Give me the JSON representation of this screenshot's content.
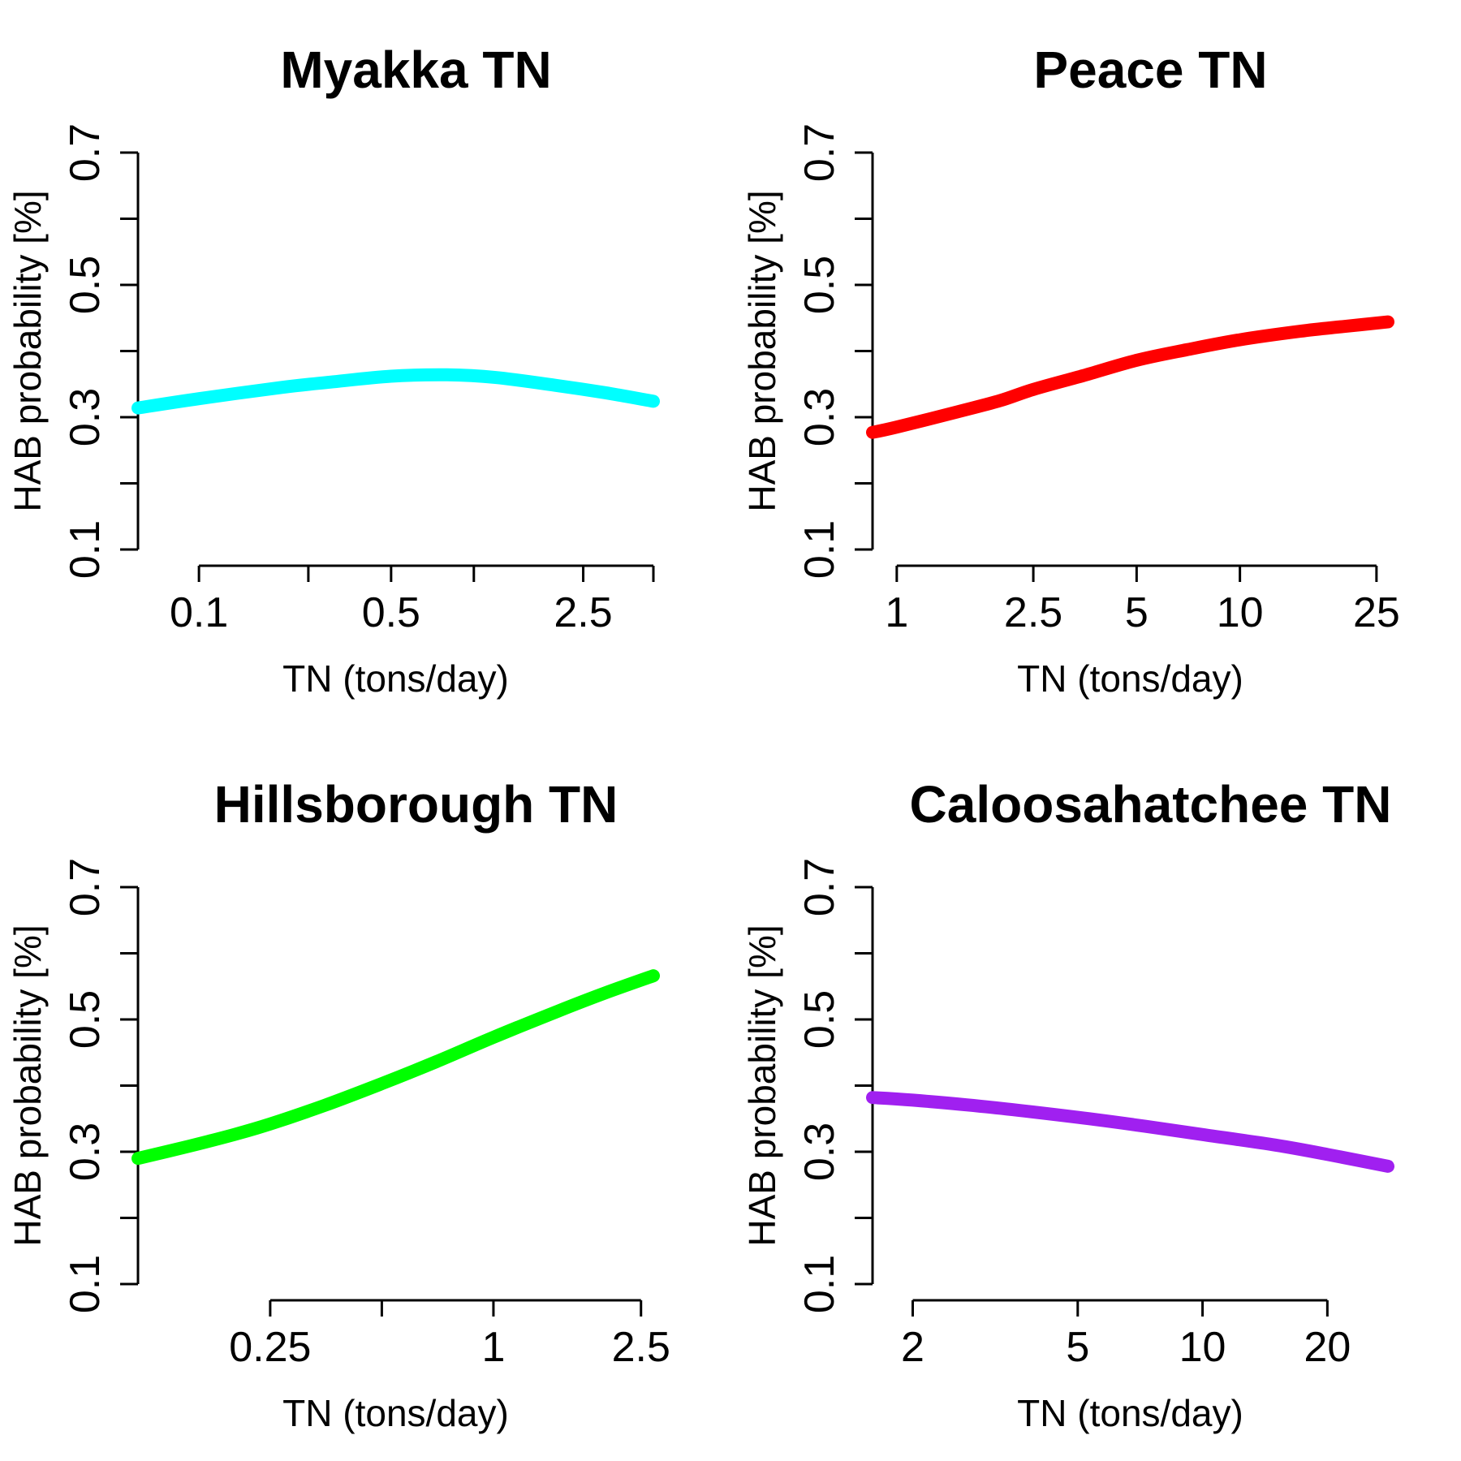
{
  "chart_data": [
    {
      "type": "line",
      "title": "Myakka TN",
      "xlabel": "TN (tons/day)",
      "ylabel": "HAB probability [%]",
      "xscale": "log",
      "xlim": [
        0.06,
        4.5
      ],
      "ylim": [
        0.1,
        0.7
      ],
      "yticks": [
        0.1,
        0.2,
        0.3,
        0.4,
        0.5,
        0.6,
        0.7
      ],
      "ytick_labels": [
        "0.1",
        "",
        "0.3",
        "",
        "0.5",
        "",
        "0.7"
      ],
      "xticks": [
        0.1,
        0.25,
        0.5,
        1,
        2.5,
        4.5
      ],
      "xtick_labels": [
        "0.1",
        "",
        "0.5",
        "",
        "2.5",
        ""
      ],
      "color": "#00ffff",
      "grid": false,
      "series": [
        {
          "x": [
            0.06,
            0.1,
            0.2,
            0.3,
            0.5,
            0.8,
            1.2,
            2.0,
            3.0,
            4.5
          ],
          "y": [
            0.314,
            0.328,
            0.345,
            0.353,
            0.362,
            0.364,
            0.36,
            0.348,
            0.337,
            0.324
          ]
        }
      ]
    },
    {
      "type": "line",
      "title": "Peace TN",
      "xlabel": "TN (tons/day)",
      "ylabel": "HAB probability [%]",
      "xscale": "log",
      "xlim": [
        0.85,
        27
      ],
      "ylim": [
        0.1,
        0.7
      ],
      "yticks": [
        0.1,
        0.2,
        0.3,
        0.4,
        0.5,
        0.6,
        0.7
      ],
      "ytick_labels": [
        "0.1",
        "",
        "0.3",
        "",
        "0.5",
        "",
        "0.7"
      ],
      "xticks": [
        1,
        2.5,
        5,
        10,
        25
      ],
      "xtick_labels": [
        "1",
        "2.5",
        "5",
        "10",
        "25"
      ],
      "color": "#ff0000",
      "grid": false,
      "series": [
        {
          "x": [
            0.85,
            1,
            1.5,
            2,
            2.5,
            3.5,
            5,
            7,
            10,
            15,
            20,
            27
          ],
          "y": [
            0.277,
            0.285,
            0.308,
            0.325,
            0.342,
            0.363,
            0.386,
            0.402,
            0.417,
            0.43,
            0.437,
            0.444
          ]
        }
      ]
    },
    {
      "type": "line",
      "title": "Hillsborough TN",
      "xlabel": "TN (tons/day)",
      "ylabel": "HAB probability [%]",
      "xscale": "log",
      "xlim": [
        0.11,
        2.7
      ],
      "ylim": [
        0.1,
        0.7
      ],
      "yticks": [
        0.1,
        0.2,
        0.3,
        0.4,
        0.5,
        0.6,
        0.7
      ],
      "ytick_labels": [
        "0.1",
        "",
        "0.3",
        "",
        "0.5",
        "",
        "0.7"
      ],
      "xticks": [
        0.25,
        0.5,
        1,
        2.5
      ],
      "xtick_labels": [
        "0.25",
        "",
        "1",
        "2.5"
      ],
      "color": "#00ff00",
      "grid": false,
      "series": [
        {
          "x": [
            0.11,
            0.15,
            0.2,
            0.25,
            0.35,
            0.5,
            0.7,
            1.0,
            1.5,
            2.0,
            2.7
          ],
          "y": [
            0.29,
            0.308,
            0.326,
            0.342,
            0.37,
            0.403,
            0.436,
            0.473,
            0.513,
            0.54,
            0.566
          ]
        }
      ]
    },
    {
      "type": "line",
      "title": "Caloosahatchee TN",
      "xlabel": "TN (tons/day)",
      "ylabel": "HAB probability [%]",
      "xscale": "log",
      "xlim": [
        1.6,
        28
      ],
      "ylim": [
        0.1,
        0.7
      ],
      "yticks": [
        0.1,
        0.2,
        0.3,
        0.4,
        0.5,
        0.6,
        0.7
      ],
      "ytick_labels": [
        "0.1",
        "",
        "0.3",
        "",
        "0.5",
        "",
        "0.7"
      ],
      "xticks": [
        2,
        5,
        10,
        20
      ],
      "xtick_labels": [
        "2",
        "5",
        "10",
        "20"
      ],
      "color": "#a020f0",
      "grid": false,
      "series": [
        {
          "x": [
            1.6,
            2,
            3,
            5,
            7,
            10,
            15,
            20,
            28
          ],
          "y": [
            0.382,
            0.378,
            0.368,
            0.352,
            0.34,
            0.326,
            0.31,
            0.296,
            0.278
          ]
        }
      ]
    }
  ]
}
